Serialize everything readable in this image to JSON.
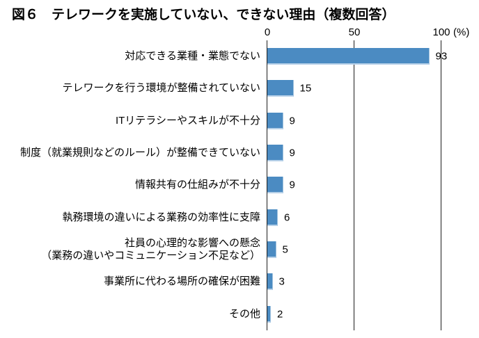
{
  "chart_data": {
    "type": "bar",
    "orientation": "horizontal",
    "title": "図６　テレワークを実施していない、できない理由（複数回答）",
    "categories": [
      "対応できる業種・業態でない",
      "テレワークを行う環境が整備されていない",
      "ITリテラシーやスキルが不十分",
      "制度（就業規則などのルール）が整備できていない",
      "情報共有の仕組みが不十分",
      "執務環境の違いによる業務の効率性に支障",
      "社員の心理的な影響への懸念\n（業務の違いやコミュニケーション不足など）",
      "事業所に代わる場所の確保が困難",
      "その他"
    ],
    "values": [
      93,
      15,
      9,
      9,
      9,
      6,
      5,
      3,
      2
    ],
    "x_ticks": [
      0,
      50,
      100
    ],
    "x_tick_labels": [
      "0",
      "50",
      "100"
    ],
    "unit_label": "(%)",
    "xlim": [
      0,
      100
    ],
    "grid": "vertical",
    "legend": "none",
    "bar_color": "#4B8BC2",
    "bar_edge_color": "#B6D0E8"
  }
}
